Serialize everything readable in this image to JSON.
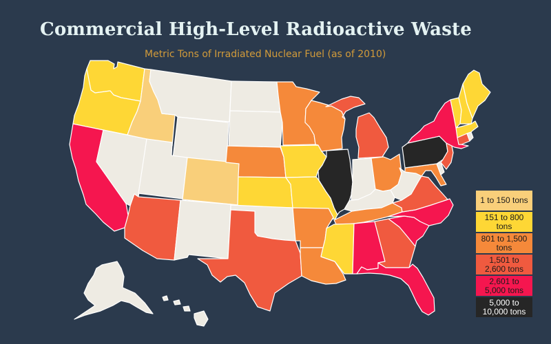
{
  "title": "Commercial High-Level Radioactive Waste",
  "subtitle": "Metric Tons of Irradiated Nuclear Fuel (as of 2010)",
  "legend": [
    {
      "label": "1 to 150 tons",
      "color": "#f9cf7a",
      "text_color": "#1a1a1a"
    },
    {
      "label": "151 to 800 tons",
      "color": "#fed735",
      "text_color": "#1a1a1a"
    },
    {
      "label": "801 to 1,500 tons",
      "color": "#f5893a",
      "text_color": "#1a1a1a"
    },
    {
      "label": "1,501 to 2,600 tons",
      "color": "#f05a3f",
      "text_color": "#1a1a1a"
    },
    {
      "label": "2,601 to 5,000 tons",
      "color": "#f5164f",
      "text_color": "#1a1a1a"
    },
    {
      "label": "5,000 to 10,000 tons",
      "color": "#262626",
      "text_color": "#ffffff"
    }
  ],
  "no_data_color": "#eeebe3",
  "map": {
    "states": [
      {
        "state": "Washington",
        "category": 1
      },
      {
        "state": "Oregon",
        "category": 1
      },
      {
        "state": "California",
        "category": 4
      },
      {
        "state": "Idaho",
        "category": 0
      },
      {
        "state": "Nevada",
        "category": null
      },
      {
        "state": "Montana",
        "category": null
      },
      {
        "state": "Wyoming",
        "category": null
      },
      {
        "state": "Utah",
        "category": null
      },
      {
        "state": "Colorado",
        "category": 0
      },
      {
        "state": "Arizona",
        "category": 3
      },
      {
        "state": "New Mexico",
        "category": null
      },
      {
        "state": "North Dakota",
        "category": null
      },
      {
        "state": "South Dakota",
        "category": null
      },
      {
        "state": "Nebraska",
        "category": 2
      },
      {
        "state": "Kansas",
        "category": 1
      },
      {
        "state": "Oklahoma",
        "category": null
      },
      {
        "state": "Texas",
        "category": 3
      },
      {
        "state": "Minnesota",
        "category": 2
      },
      {
        "state": "Iowa",
        "category": 1
      },
      {
        "state": "Missouri",
        "category": 1
      },
      {
        "state": "Arkansas",
        "category": 2
      },
      {
        "state": "Louisiana",
        "category": 2
      },
      {
        "state": "Wisconsin",
        "category": 2
      },
      {
        "state": "Illinois",
        "category": 5
      },
      {
        "state": "Michigan",
        "category": 3
      },
      {
        "state": "Indiana",
        "category": null
      },
      {
        "state": "Ohio",
        "category": 2
      },
      {
        "state": "Kentucky",
        "category": null
      },
      {
        "state": "Tennessee",
        "category": 2
      },
      {
        "state": "Mississippi",
        "category": 1
      },
      {
        "state": "Alabama",
        "category": 4
      },
      {
        "state": "Georgia",
        "category": 3
      },
      {
        "state": "Florida",
        "category": 4
      },
      {
        "state": "South Carolina",
        "category": 4
      },
      {
        "state": "North Carolina",
        "category": 4
      },
      {
        "state": "Virginia",
        "category": 3
      },
      {
        "state": "West Virginia",
        "category": null
      },
      {
        "state": "Maryland",
        "category": 2
      },
      {
        "state": "Delaware",
        "category": null
      },
      {
        "state": "New Jersey",
        "category": 3
      },
      {
        "state": "Pennsylvania",
        "category": 5
      },
      {
        "state": "New York",
        "category": 4
      },
      {
        "state": "Connecticut",
        "category": 3
      },
      {
        "state": "Rhode Island",
        "category": null
      },
      {
        "state": "Massachusetts",
        "category": 1
      },
      {
        "state": "Vermont",
        "category": 1
      },
      {
        "state": "New Hampshire",
        "category": 1
      },
      {
        "state": "Maine",
        "category": 1
      },
      {
        "state": "Alaska",
        "category": null
      },
      {
        "state": "Hawaii",
        "category": null
      }
    ]
  }
}
